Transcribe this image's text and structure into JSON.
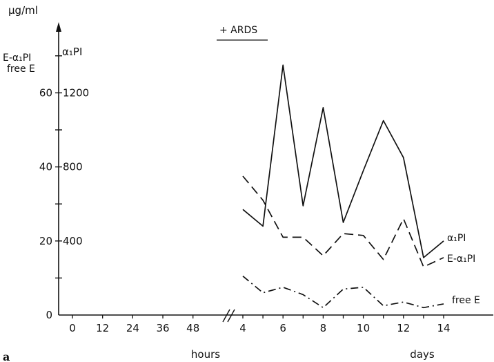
{
  "chart_data": {
    "type": "line",
    "panel_label": "a",
    "annotation": "+ ARDS",
    "y_unit": "µg/ml",
    "y_axis_left": {
      "label_line1": "E-α₁PI",
      "label_line2": "free E",
      "ticks": [
        "0",
        "20",
        "40",
        "60"
      ],
      "range": [
        0,
        70
      ]
    },
    "y_axis_right": {
      "label": "α₁PI",
      "ticks": [
        "400",
        "800",
        "1200"
      ],
      "range": [
        0,
        1400
      ]
    },
    "x_axis": {
      "hours_ticks": [
        "0",
        "12",
        "24",
        "36",
        "48"
      ],
      "hours_label": "hours",
      "days_ticks": [
        "4",
        "6",
        "8",
        "10",
        "12",
        "14"
      ],
      "days_label": "days",
      "days_range": [
        4,
        14
      ]
    },
    "series": [
      {
        "name": "α₁PI",
        "axis": "right",
        "style": "solid",
        "x": [
          4,
          5,
          6,
          7,
          8,
          9,
          10,
          11,
          12,
          13,
          14
        ],
        "y": [
          570,
          480,
          1350,
          590,
          1120,
          500,
          780,
          1050,
          850,
          310,
          400
        ]
      },
      {
        "name": "E-α₁PI",
        "axis": "left",
        "style": "dashed",
        "x": [
          4,
          5,
          6,
          7,
          8,
          9,
          10,
          11,
          12,
          13,
          14
        ],
        "y": [
          37.5,
          31,
          21,
          21,
          16,
          22,
          21.5,
          15,
          26,
          13,
          15.5
        ]
      },
      {
        "name": "free E",
        "axis": "left",
        "style": "dashdot",
        "x": [
          4,
          5,
          6,
          7,
          8,
          9,
          10,
          11,
          12,
          13,
          14
        ],
        "y": [
          10.5,
          6,
          7.5,
          5.5,
          2,
          7,
          7.5,
          2.5,
          3.5,
          2,
          3
        ]
      }
    ]
  }
}
